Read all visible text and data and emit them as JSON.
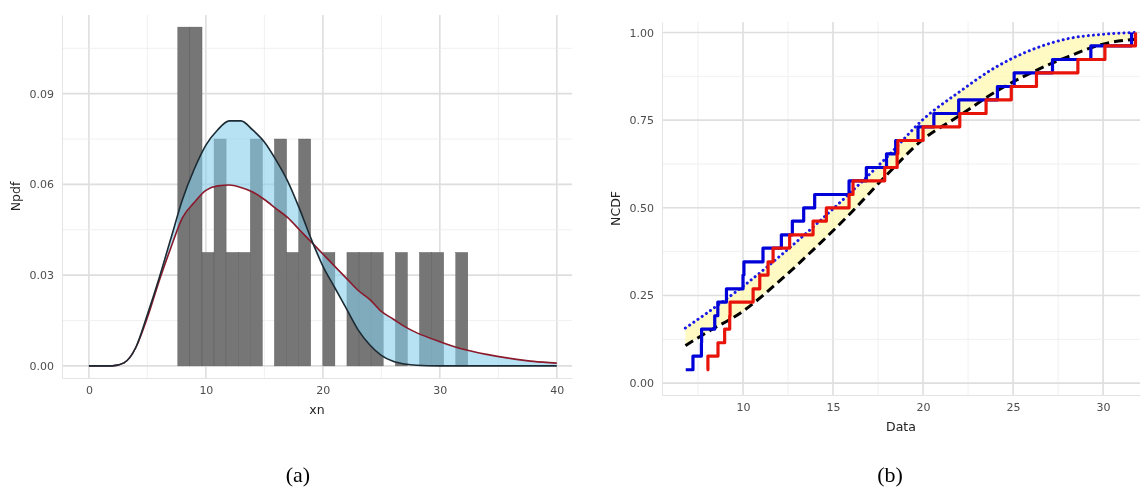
{
  "chart_data": [
    {
      "type": "histogram",
      "xlabel": "xn",
      "ylabel": "Npdf",
      "annotations": [
        "(a)"
      ],
      "grid": true,
      "color": "#767676",
      "bins": [
        7.6,
        8.63,
        9.67,
        10.7,
        11.73,
        12.77,
        13.8,
        14.83,
        15.86,
        16.9,
        17.93,
        18.96,
        20.0,
        21.03,
        22.06,
        23.1,
        24.13,
        25.16,
        26.2,
        27.23,
        28.26,
        29.3,
        30.33,
        31.36,
        32.39
      ],
      "values": [
        0.112,
        0.112,
        0.0375,
        0.075,
        0.0375,
        0.0375,
        0.075,
        0,
        0.075,
        0.0375,
        0.075,
        0,
        0.0375,
        0,
        0.0375,
        0.0375,
        0.0375,
        0,
        0.0375,
        0,
        0.0375,
        0.0375,
        0,
        0.0375
      ],
      "xlim": [
        -2.3,
        41.3
      ],
      "ylim": [
        -0.004,
        0.116
      ],
      "xticks": [
        0,
        {
          "value": 5,
          "label": null
        },
        10,
        {
          "value": 15,
          "label": null
        },
        20,
        {
          "value": 25,
          "label": null
        },
        30,
        {
          "value": 35,
          "label": null
        },
        40
      ],
      "yticks": [
        {
          "value": 0,
          "label": "0.00"
        },
        {
          "value": 0.015,
          "label": null
        },
        {
          "value": 0.03,
          "label": "0.03"
        },
        {
          "value": 0.045,
          "label": null
        },
        {
          "value": 0.06,
          "label": "0.06"
        },
        {
          "value": 0.075,
          "label": null
        },
        {
          "value": 0.09,
          "label": "0.09"
        },
        {
          "value": 0.105,
          "label": null
        }
      ],
      "series": [
        {
          "type": "line",
          "color": "#8b1a2b",
          "x": [
            0,
            2,
            3,
            4,
            5,
            6,
            7,
            8,
            9,
            10,
            11,
            12,
            13,
            14,
            15,
            16,
            17,
            18,
            19,
            20,
            21,
            22,
            23,
            24,
            25,
            26,
            27,
            28,
            30,
            32,
            34,
            36,
            38,
            40
          ],
          "values": [
            0,
            0,
            0.001,
            0.006,
            0.016,
            0.028,
            0.039,
            0.049,
            0.054,
            0.058,
            0.0595,
            0.0598,
            0.059,
            0.0575,
            0.055,
            0.052,
            0.049,
            0.045,
            0.041,
            0.037,
            0.033,
            0.029,
            0.025,
            0.022,
            0.018,
            0.0155,
            0.013,
            0.011,
            0.008,
            0.0055,
            0.0038,
            0.0025,
            0.0015,
            0.0009
          ]
        },
        {
          "type": "line",
          "color": "#1c2b33",
          "x": [
            0,
            2,
            3,
            4,
            5,
            6,
            7,
            8,
            9,
            10,
            11,
            12,
            13,
            14,
            15,
            16,
            17,
            18,
            19,
            20,
            21,
            22,
            23,
            24,
            25,
            26,
            27,
            28,
            30,
            32,
            34,
            36,
            38,
            40
          ],
          "values": [
            0,
            0,
            0.001,
            0.006,
            0.017,
            0.029,
            0.042,
            0.055,
            0.065,
            0.073,
            0.078,
            0.081,
            0.081,
            0.078,
            0.074,
            0.068,
            0.061,
            0.052,
            0.042,
            0.033,
            0.026,
            0.019,
            0.012,
            0.007,
            0.0035,
            0.0015,
            0.0006,
            0.0002,
            0,
            0,
            0,
            0,
            0,
            0
          ],
          "lower": [
            0,
            0,
            0.001,
            0.006,
            0.016,
            0.028,
            0.039,
            0.049,
            0.054,
            0.058,
            0.0595,
            0.0598,
            0.059,
            0.0575,
            0.055,
            0.052,
            0.049,
            0.045,
            0.041,
            0.033,
            0.026,
            0.019,
            0.012,
            0.007,
            0.0035,
            0.0015,
            0.0006,
            0.0002,
            0,
            0,
            0,
            0,
            0,
            0
          ],
          "upper": [
            0,
            0,
            0.001,
            0.006,
            0.017,
            0.029,
            0.042,
            0.055,
            0.065,
            0.073,
            0.078,
            0.081,
            0.081,
            0.078,
            0.074,
            0.068,
            0.061,
            0.052,
            0.042,
            0.037,
            0.033,
            0.029,
            0.025,
            0.022,
            0.018,
            0.0155,
            0.013,
            0.011,
            0.008,
            0.0055,
            0.0038,
            0.0025,
            0.0015,
            0.0009
          ]
        }
      ]
    },
    {
      "type": "step",
      "xlabel": "Data",
      "ylabel": "NCDF",
      "annotations": [
        "(b)"
      ],
      "grid": true,
      "xlim": [
        5.5,
        32.05
      ],
      "ylim": [
        -0.034,
        1.03
      ],
      "xticks": [
        {
          "value": 7.5,
          "label": null
        },
        10,
        {
          "value": 12.5,
          "label": null
        },
        15,
        {
          "value": 17.5,
          "label": null
        },
        20,
        {
          "value": 22.5,
          "label": null
        },
        25,
        {
          "value": 27.5,
          "label": null
        },
        30
      ],
      "yticks": [
        {
          "value": 0,
          "label": "0.00"
        },
        {
          "value": 0.125,
          "label": null
        },
        {
          "value": 0.25,
          "label": "0.25"
        },
        {
          "value": 0.375,
          "label": null
        },
        {
          "value": 0.5,
          "label": "0.50"
        },
        {
          "value": 0.625,
          "label": null
        },
        {
          "value": 0.75,
          "label": "0.75"
        },
        {
          "value": 0.875,
          "label": null
        },
        {
          "value": 1,
          "label": "1.00"
        }
      ],
      "series": [
        {
          "type": "line",
          "color": "#000000",
          "line_style": "dashed",
          "x": [
            6.8,
            8,
            10,
            12,
            14,
            16,
            18,
            20,
            22,
            24,
            26,
            28,
            30,
            31.8
          ],
          "values": [
            0.107,
            0.145,
            0.205,
            0.29,
            0.385,
            0.486,
            0.595,
            0.695,
            0.762,
            0.83,
            0.885,
            0.93,
            0.967,
            0.981
          ],
          "lower": [
            0.107,
            0.145,
            0.205,
            0.29,
            0.385,
            0.486,
            0.595,
            0.695,
            0.762,
            0.83,
            0.885,
            0.93,
            0.967,
            0.981
          ],
          "upper": [
            0.157,
            0.2,
            0.276,
            0.36,
            0.45,
            0.545,
            0.645,
            0.752,
            0.83,
            0.9,
            0.95,
            0.982,
            0.995,
            1.0
          ]
        },
        {
          "type": "line",
          "color": "#1a1ae6",
          "line_style": "dotted",
          "x": [
            6.8,
            8,
            10,
            12,
            14,
            16,
            18,
            20,
            22,
            24,
            26,
            28,
            30,
            31.8
          ],
          "values": [
            0.157,
            0.2,
            0.276,
            0.36,
            0.45,
            0.545,
            0.645,
            0.752,
            0.83,
            0.9,
            0.95,
            0.982,
            0.995,
            1.0
          ]
        },
        {
          "type": "step",
          "color": "#0000d8",
          "x": [
            6.82,
            7.22,
            7.69,
            7.7,
            8.43,
            8.6,
            9.08,
            10.0,
            10.05,
            11.11,
            12.13,
            12.74,
            13.37,
            13.98,
            15.89,
            16.85,
            17.97,
            18.48,
            19.72,
            20.6,
            21.98,
            24.13,
            25.06,
            27.19,
            29.32,
            31.58
          ],
          "values": [
            0.038,
            0.077,
            0.115,
            0.154,
            0.192,
            0.231,
            0.269,
            0.308,
            0.346,
            0.385,
            0.423,
            0.462,
            0.5,
            0.538,
            0.577,
            0.615,
            0.654,
            0.692,
            0.731,
            0.769,
            0.808,
            0.846,
            0.885,
            0.923,
            0.962,
            1.0
          ]
        },
        {
          "type": "step",
          "color": "#e8140a",
          "x": [
            7.98,
            8.05,
            8.61,
            8.98,
            9.26,
            9.28,
            10.56,
            10.93,
            11.39,
            11.67,
            12.59,
            13.89,
            14.63,
            15.89,
            16.11,
            17.87,
            18.56,
            18.6,
            20.0,
            22.04,
            23.5,
            24.9,
            26.3,
            28.6,
            30.1,
            31.8
          ],
          "values": [
            0.038,
            0.077,
            0.115,
            0.154,
            0.192,
            0.231,
            0.269,
            0.308,
            0.346,
            0.385,
            0.423,
            0.462,
            0.5,
            0.538,
            0.577,
            0.615,
            0.654,
            0.692,
            0.731,
            0.769,
            0.808,
            0.846,
            0.885,
            0.923,
            0.962,
            1.0
          ]
        }
      ]
    }
  ]
}
